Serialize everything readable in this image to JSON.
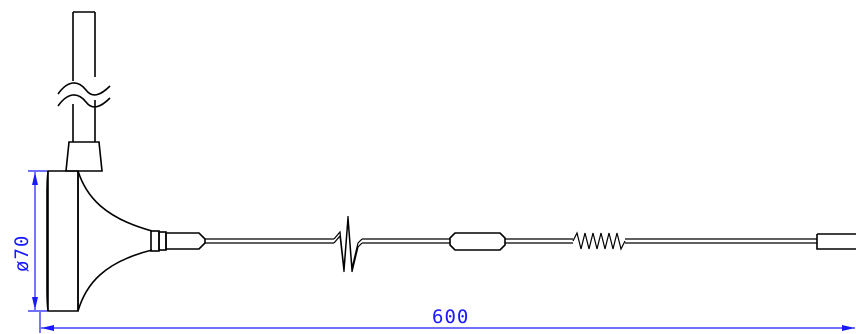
{
  "dimensions": {
    "length": {
      "value": "600",
      "color": "#1a1aff"
    },
    "diameter": {
      "value": "ø70",
      "color": "#1a1aff"
    }
  },
  "drawing": {
    "line_color": "#000000"
  }
}
